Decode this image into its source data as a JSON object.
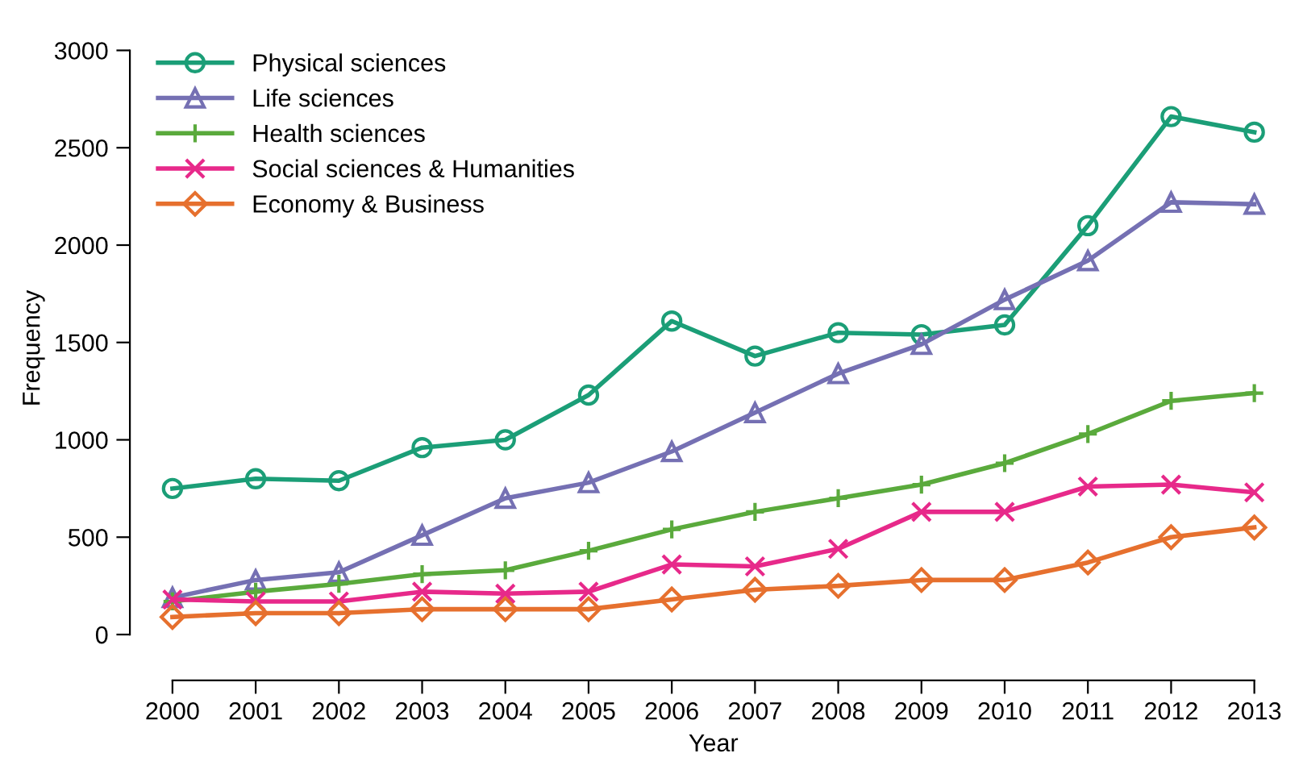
{
  "chart_data": {
    "type": "line",
    "xlabel": "Year",
    "ylabel": "Frequency",
    "x": [
      2000,
      2001,
      2002,
      2003,
      2004,
      2005,
      2006,
      2007,
      2008,
      2009,
      2010,
      2011,
      2012,
      2013
    ],
    "xlim": [
      2000,
      2013
    ],
    "xticks": [
      2000,
      2001,
      2002,
      2003,
      2004,
      2005,
      2006,
      2007,
      2008,
      2009,
      2010,
      2011,
      2012,
      2013
    ],
    "ylim": [
      0,
      3000
    ],
    "yticks": [
      0,
      500,
      1000,
      1500,
      2000,
      2500,
      3000
    ],
    "grid": false,
    "legend": "top left",
    "line_style": "solid",
    "series": [
      {
        "name": "Physical sciences",
        "color": "#1b9e77",
        "marker": "circle",
        "values": [
          750,
          800,
          790,
          960,
          1000,
          1230,
          1610,
          1430,
          1550,
          1540,
          1590,
          2100,
          2660,
          2580
        ]
      },
      {
        "name": "Life sciences",
        "color": "#7570b3",
        "marker": "triangle",
        "values": [
          190,
          280,
          320,
          510,
          700,
          780,
          940,
          1140,
          1340,
          1490,
          1720,
          1920,
          2220,
          2210
        ]
      },
      {
        "name": "Health sciences",
        "color": "#5aaa3c",
        "marker": "cross",
        "values": [
          170,
          220,
          260,
          310,
          330,
          430,
          540,
          630,
          700,
          770,
          880,
          1030,
          1200,
          1240
        ]
      },
      {
        "name": "Social sciences & Humanities",
        "color": "#e7298a",
        "marker": "x",
        "values": [
          180,
          170,
          170,
          220,
          210,
          220,
          360,
          350,
          440,
          630,
          630,
          760,
          770,
          730
        ]
      },
      {
        "name": "Economy & Business",
        "color": "#e6702e",
        "marker": "diamond",
        "values": [
          90,
          110,
          110,
          130,
          130,
          130,
          180,
          230,
          250,
          280,
          280,
          370,
          500,
          550
        ]
      }
    ]
  }
}
